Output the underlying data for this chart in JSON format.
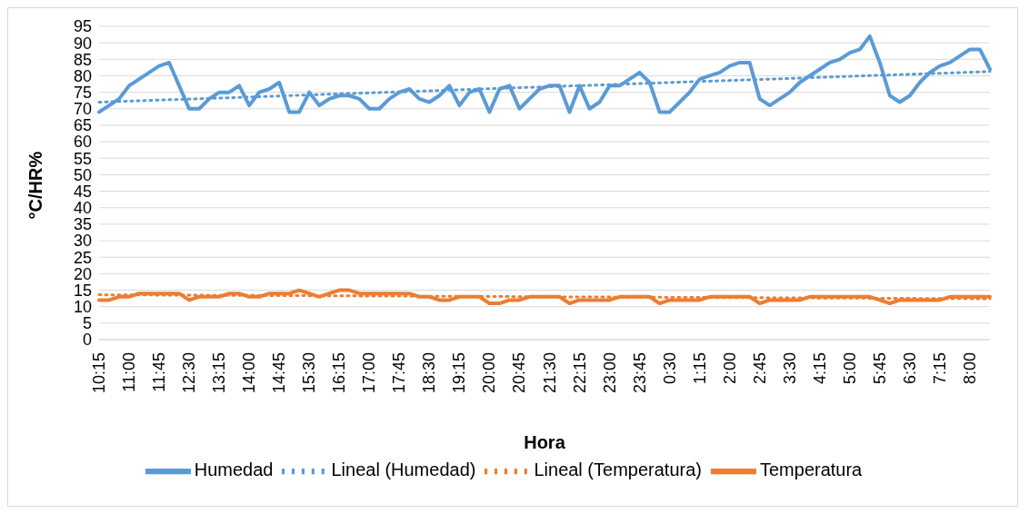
{
  "chart_data": {
    "type": "line",
    "xlabel": "Hora",
    "ylabel": "°C/HR%",
    "categories": [
      "10:15",
      null,
      null,
      "11:00",
      null,
      null,
      "11:45",
      null,
      null,
      "12:30",
      null,
      null,
      "13:15",
      null,
      null,
      "14:00",
      null,
      null,
      "14:45",
      null,
      null,
      "15:30",
      null,
      null,
      "16:15",
      null,
      null,
      "17:00",
      null,
      null,
      "17:45",
      null,
      null,
      "18:30",
      null,
      null,
      "19:15",
      null,
      null,
      "20:00",
      null,
      null,
      "20:45",
      null,
      null,
      "21:30",
      null,
      null,
      "22:15",
      null,
      null,
      "23:00",
      null,
      null,
      "23:45",
      null,
      null,
      "0:30",
      null,
      null,
      "1:15",
      null,
      null,
      "2:00",
      null,
      null,
      "2:45",
      null,
      null,
      "3:30",
      null,
      null,
      "4:15",
      null,
      null,
      "5:00",
      null,
      null,
      "5:45",
      null,
      null,
      "6:30",
      null,
      null,
      "7:15",
      null,
      null,
      "8:00",
      null,
      null
    ],
    "series": [
      {
        "name": "Humedad",
        "color": "#5b9bd5",
        "line_style": "solid",
        "values": [
          69,
          71,
          73,
          77,
          79,
          81,
          83,
          84,
          77,
          70,
          70,
          73,
          75,
          75,
          77,
          71,
          75,
          76,
          78,
          69,
          69,
          75,
          71,
          73,
          74,
          74,
          73,
          70,
          70,
          73,
          75,
          76,
          73,
          72,
          74,
          77,
          71,
          75,
          76,
          69,
          76,
          77,
          70,
          73,
          76,
          77,
          77,
          69,
          77,
          70,
          72,
          77,
          77,
          79,
          81,
          78,
          69,
          69,
          72,
          75,
          79,
          80,
          81,
          83,
          84,
          84,
          73,
          71,
          73,
          75,
          78,
          80,
          82,
          84,
          85,
          87,
          88,
          92,
          84,
          74,
          72,
          74,
          78,
          81,
          83,
          84,
          86,
          88,
          88,
          82
        ]
      },
      {
        "name": "Temperatura",
        "color": "#ed7d31",
        "line_style": "solid",
        "values": [
          12,
          12,
          13,
          13,
          14,
          14,
          14,
          14,
          14,
          12,
          13,
          13,
          13,
          14,
          14,
          13,
          13,
          14,
          14,
          14,
          15,
          14,
          13,
          14,
          15,
          15,
          14,
          14,
          14,
          14,
          14,
          14,
          13,
          13,
          12,
          12,
          13,
          13,
          13,
          11,
          11,
          12,
          12,
          13,
          13,
          13,
          13,
          11,
          12,
          12,
          12,
          12,
          13,
          13,
          13,
          13,
          11,
          12,
          12,
          12,
          12,
          13,
          13,
          13,
          13,
          13,
          11,
          12,
          12,
          12,
          12,
          13,
          13,
          13,
          13,
          13,
          13,
          13,
          12,
          11,
          12,
          12,
          12,
          12,
          12,
          13,
          13,
          13,
          13,
          13
        ]
      },
      {
        "name": "Lineal (Humedad)",
        "color": "#5b9bd5",
        "line_style": "dotted",
        "values": [
          72,
          null,
          null,
          null,
          null,
          null,
          null,
          null,
          null,
          null,
          null,
          null,
          null,
          null,
          null,
          null,
          null,
          null,
          null,
          null,
          null,
          null,
          null,
          null,
          null,
          null,
          null,
          null,
          null,
          null,
          null,
          null,
          null,
          null,
          null,
          null,
          null,
          null,
          null,
          null,
          null,
          null,
          null,
          null,
          null,
          null,
          null,
          null,
          null,
          null,
          null,
          null,
          null,
          null,
          null,
          null,
          null,
          null,
          null,
          null,
          null,
          null,
          null,
          null,
          null,
          null,
          null,
          null,
          null,
          null,
          null,
          null,
          null,
          null,
          null,
          null,
          null,
          null,
          null,
          null,
          null,
          null,
          null,
          null,
          null,
          null,
          null,
          null,
          null,
          81.3
        ]
      },
      {
        "name": "Lineal (Temperatura)",
        "color": "#ed7d31",
        "line_style": "dotted",
        "values": [
          13.6,
          null,
          null,
          null,
          null,
          null,
          null,
          null,
          null,
          null,
          null,
          null,
          null,
          null,
          null,
          null,
          null,
          null,
          null,
          null,
          null,
          null,
          null,
          null,
          null,
          null,
          null,
          null,
          null,
          null,
          null,
          null,
          null,
          null,
          null,
          null,
          null,
          null,
          null,
          null,
          null,
          null,
          null,
          null,
          null,
          null,
          null,
          null,
          null,
          null,
          null,
          null,
          null,
          null,
          null,
          null,
          null,
          null,
          null,
          null,
          null,
          null,
          null,
          null,
          null,
          null,
          null,
          null,
          null,
          null,
          null,
          null,
          null,
          null,
          null,
          null,
          null,
          null,
          null,
          null,
          null,
          null,
          null,
          null,
          null,
          null,
          null,
          null,
          null,
          12.4
        ]
      }
    ],
    "ylim": [
      0,
      95
    ],
    "yticks": [
      0,
      5,
      10,
      15,
      20,
      25,
      30,
      35,
      40,
      45,
      50,
      55,
      60,
      65,
      70,
      75,
      80,
      85,
      90,
      95
    ],
    "grid": "y",
    "legend": "bottom",
    "marker": "none"
  }
}
